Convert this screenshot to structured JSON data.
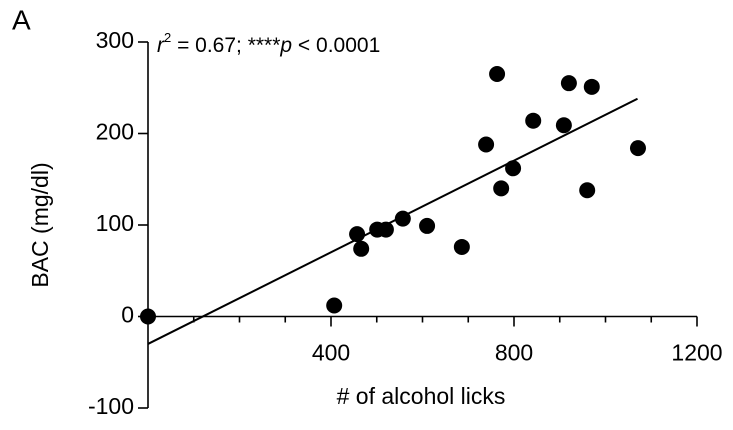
{
  "chart_data": {
    "type": "scatter",
    "panel_label": "A",
    "xlabel": "# of alcohol licks",
    "ylabel": "BAC (mg/dl)",
    "annotation": [
      {
        "text": "r",
        "style": "italic"
      },
      {
        "text": "2",
        "style": "superscript"
      },
      {
        "text": " = 0.67; ****",
        "style": "normal"
      },
      {
        "text": "p",
        "style": "italic"
      },
      {
        "text": " < 0.0001",
        "style": "normal"
      }
    ],
    "x": [
      0,
      407,
      457,
      466,
      501,
      520,
      557,
      610,
      686,
      739,
      763,
      772,
      798,
      842,
      909,
      920,
      960,
      970,
      1071
    ],
    "values": [
      0,
      12,
      90,
      74,
      95,
      95,
      107,
      99,
      76,
      188,
      265,
      140,
      162,
      214,
      209,
      255,
      138,
      251,
      184
    ],
    "color": "#000000",
    "regression": {
      "x": [
        0,
        1070
      ],
      "y": [
        -30,
        238
      ]
    },
    "xlim": [
      0,
      1200
    ],
    "xticks": [
      400,
      800,
      1200
    ],
    "xminor_ticks": [
      100,
      200,
      300,
      500,
      600,
      700,
      900,
      1000,
      1100
    ],
    "ylim": [
      -100,
      300
    ],
    "yticks": [
      -100,
      0,
      100,
      200,
      300
    ]
  }
}
